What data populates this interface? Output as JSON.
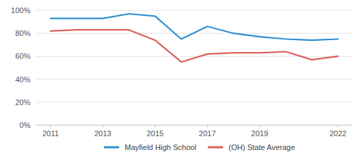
{
  "chart_data": {
    "type": "line",
    "x": [
      2011,
      2012,
      2013,
      2014,
      2015,
      2016,
      2017,
      2018,
      2019,
      2020,
      2021,
      2022
    ],
    "series": [
      {
        "name": "Mayfield High School",
        "color": "#2f8fd1",
        "values": [
          93,
          93,
          93,
          97,
          95,
          75,
          86,
          80,
          77,
          75,
          74,
          75
        ]
      },
      {
        "name": "(OH) State Average",
        "color": "#d9605e",
        "values": [
          82,
          83,
          83,
          83,
          74,
          55,
          62,
          63,
          63,
          64,
          57,
          60
        ]
      }
    ],
    "xlim": [
      2011,
      2022
    ],
    "xticks": [
      2011,
      2013,
      2015,
      2017,
      2019,
      2022
    ],
    "ylim": [
      0,
      100
    ],
    "yticks": [
      {
        "value": 0,
        "label": "0%"
      },
      {
        "value": 20,
        "label": "20%"
      },
      {
        "value": 40,
        "label": "40%"
      },
      {
        "value": 60,
        "label": "60%"
      },
      {
        "value": 80,
        "label": "80%"
      },
      {
        "value": 100,
        "label": "100%"
      }
    ],
    "grid": true,
    "legend": "bottom"
  }
}
